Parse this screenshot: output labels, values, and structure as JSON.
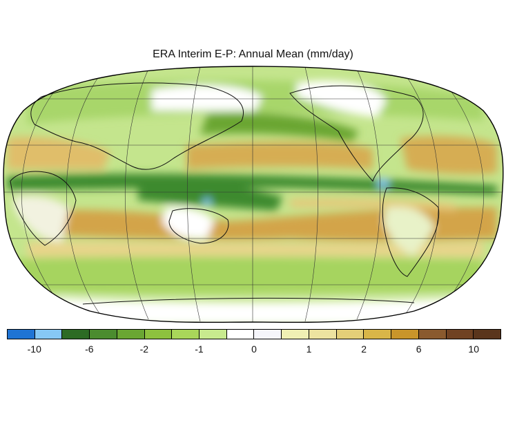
{
  "title": "ERA Interim E-P: Annual Mean (mm/day)",
  "legend": {
    "colors": [
      "#1f74d4",
      "#86c8f5",
      "#2d6b24",
      "#4b8c2f",
      "#6aa633",
      "#8dc13e",
      "#a9d65a",
      "#c8ea8e",
      "#ffffff",
      "#f5f5fa",
      "#f0f0b4",
      "#ede3a0",
      "#e4cf78",
      "#d9b648",
      "#c9952a",
      "#8a5a2e",
      "#704222",
      "#5a351c"
    ],
    "tick_labels": [
      "-10",
      "-6",
      "-2",
      "-1",
      "0",
      "1",
      "2",
      "6",
      "10"
    ]
  },
  "map": {
    "projection": "Robinson",
    "field_colors": {
      "ocean_dry": "#d1a44c",
      "ocean_mid": "#e6c879",
      "moist_light": "#c4e58d",
      "moist_mid": "#8fc447",
      "moist_dark": "#3e8a2e",
      "very_wet": "#7fc3ee",
      "neutral": "#ffffff"
    }
  }
}
